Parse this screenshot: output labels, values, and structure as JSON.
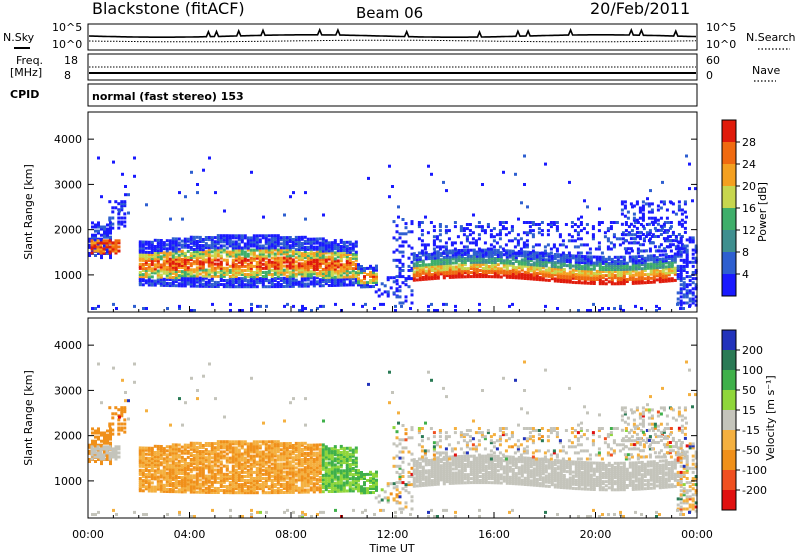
{
  "header": {
    "station": "Blackstone (fitACF)",
    "beam": "Beam 06",
    "date": "20/Feb/2011"
  },
  "mode_label": "normal (fast stereo) 153",
  "chart_data": [
    {
      "type": "line",
      "panel": "noise",
      "left_label": "N.Sky",
      "right_label": "N.Search",
      "left_ticks": [
        "10^5",
        "10^0"
      ],
      "right_ticks": [
        "10^5",
        "10^0"
      ]
    },
    {
      "type": "line",
      "panel": "frequency",
      "left_label_1": "Freq.",
      "left_label_2": "[MHz]",
      "left_label_3": "CPID",
      "right_label": "Nave",
      "left_ticks": [
        18,
        8
      ],
      "right_ticks": [
        60,
        0
      ]
    },
    {
      "type": "heatmap",
      "panel": "power",
      "ylabel": "Slant Range [km]",
      "ylim": [
        180,
        4600
      ],
      "yticks": [
        1000,
        2000,
        3000,
        4000
      ],
      "xlim": [
        0,
        24
      ],
      "colorbar": {
        "label": "Power [dB]",
        "ticks": [
          4,
          8,
          12,
          16,
          20,
          24,
          28
        ],
        "colors": [
          "#1a1aff",
          "#2e5fd0",
          "#3f8f8f",
          "#3fae6a",
          "#c7d64e",
          "#f4a020",
          "#f06a10",
          "#e01b0b"
        ]
      }
    },
    {
      "type": "heatmap",
      "panel": "velocity",
      "ylabel": "Slant Range [km]",
      "xlabel": "Time UT",
      "ylim": [
        180,
        4600
      ],
      "yticks": [
        1000,
        2000,
        3000,
        4000
      ],
      "xlim": [
        0,
        24
      ],
      "xticks": [
        "00:00",
        "04:00",
        "08:00",
        "12:00",
        "16:00",
        "20:00",
        "00:00"
      ],
      "colorbar": {
        "label": "Velocity [m s⁻¹]",
        "ticks": [
          200,
          100,
          50,
          15,
          -15,
          -50,
          -100,
          -200
        ],
        "colors": [
          "#2233bb",
          "#2a7a55",
          "#3fb04a",
          "#8fd63a",
          "#c4c4bb",
          "#f4b040",
          "#f0901a",
          "#f05020",
          "#e01010"
        ]
      }
    }
  ]
}
